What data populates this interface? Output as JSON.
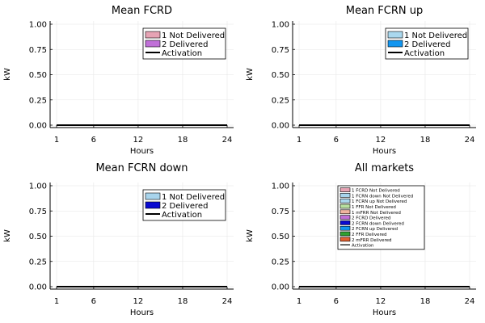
{
  "chart_data": [
    {
      "type": "area",
      "title": "Mean FCRD",
      "xlabel": "Hours",
      "ylabel": "kW",
      "xticks": [
        "1",
        "6",
        "12",
        "18",
        "24"
      ],
      "yticks": [
        "0.00",
        "0.25",
        "0.50",
        "0.75",
        "1.00"
      ],
      "xlim": [
        1,
        24
      ],
      "ylim": [
        0,
        1
      ],
      "grid": true,
      "legend_position": "top-right",
      "series": [
        {
          "name": "1 Not Delivered",
          "kind": "area",
          "color": "#e6a3b4",
          "x": [
            1,
            24
          ],
          "values": [
            0,
            0
          ]
        },
        {
          "name": "2 Delivered",
          "kind": "area",
          "color": "#c070d8",
          "x": [
            1,
            24
          ],
          "values": [
            0,
            0
          ]
        },
        {
          "name": "Activation",
          "kind": "line",
          "color": "#000000",
          "x": [
            1,
            24
          ],
          "values": [
            0,
            0
          ]
        }
      ]
    },
    {
      "type": "area",
      "title": "Mean FCRN up",
      "xlabel": "Hours",
      "ylabel": "kW",
      "xticks": [
        "1",
        "6",
        "12",
        "18",
        "24"
      ],
      "yticks": [
        "0.00",
        "0.25",
        "0.50",
        "0.75",
        "1.00"
      ],
      "xlim": [
        1,
        24
      ],
      "ylim": [
        0,
        1
      ],
      "grid": true,
      "legend_position": "top-right",
      "series": [
        {
          "name": "1 Not Delivered",
          "kind": "area",
          "color": "#aad8ee",
          "x": [
            1,
            24
          ],
          "values": [
            0,
            0
          ]
        },
        {
          "name": "2 Delivered",
          "kind": "area",
          "color": "#1296f0",
          "x": [
            1,
            24
          ],
          "values": [
            0,
            0
          ]
        },
        {
          "name": "Activation",
          "kind": "line",
          "color": "#000000",
          "x": [
            1,
            24
          ],
          "values": [
            0,
            0
          ]
        }
      ]
    },
    {
      "type": "area",
      "title": "Mean FCRN down",
      "xlabel": "Hours",
      "ylabel": "kW",
      "xticks": [
        "1",
        "6",
        "12",
        "18",
        "24"
      ],
      "yticks": [
        "0.00",
        "0.25",
        "0.50",
        "0.75",
        "1.00"
      ],
      "xlim": [
        1,
        24
      ],
      "ylim": [
        0,
        1
      ],
      "grid": true,
      "legend_position": "top-right",
      "series": [
        {
          "name": "1 Not Delivered",
          "kind": "area",
          "color": "#a8d4ec",
          "x": [
            1,
            24
          ],
          "values": [
            0,
            0
          ]
        },
        {
          "name": "2 Delivered",
          "kind": "area",
          "color": "#0a0ad0",
          "x": [
            1,
            24
          ],
          "values": [
            0,
            0
          ]
        },
        {
          "name": "Activation",
          "kind": "line",
          "color": "#000000",
          "x": [
            1,
            24
          ],
          "values": [
            0,
            0
          ]
        }
      ]
    },
    {
      "type": "area",
      "title": "All markets",
      "xlabel": "Hours",
      "ylabel": "kW",
      "xticks": [
        "1",
        "6",
        "12",
        "18",
        "24"
      ],
      "yticks": [
        "0.00",
        "0.25",
        "0.50",
        "0.75",
        "1.00"
      ],
      "xlim": [
        1,
        24
      ],
      "ylim": [
        0,
        1
      ],
      "grid": true,
      "legend_position": "top-center",
      "legend_size": "small",
      "series": [
        {
          "name": "1 FCRD Not Delivered",
          "kind": "area",
          "color": "#e6a3b4",
          "x": [
            1,
            24
          ],
          "values": [
            0,
            0
          ]
        },
        {
          "name": "1 FCRN down Not Delivered",
          "kind": "area",
          "color": "#a8d4ec",
          "x": [
            1,
            24
          ],
          "values": [
            0,
            0
          ]
        },
        {
          "name": "1 FCRN up Not Delivered",
          "kind": "area",
          "color": "#aad8ee",
          "x": [
            1,
            24
          ],
          "values": [
            0,
            0
          ]
        },
        {
          "name": "1 FFR Not Delivered",
          "kind": "area",
          "color": "#b8e0a0",
          "x": [
            1,
            24
          ],
          "values": [
            0,
            0
          ]
        },
        {
          "name": "1 mFRR Not Delivered",
          "kind": "area",
          "color": "#f0b4a0",
          "x": [
            1,
            24
          ],
          "values": [
            0,
            0
          ]
        },
        {
          "name": "2 FCRD Delivered",
          "kind": "area",
          "color": "#c070d8",
          "x": [
            1,
            24
          ],
          "values": [
            0,
            0
          ]
        },
        {
          "name": "2 FCRN down Delivered",
          "kind": "area",
          "color": "#0a0ad0",
          "x": [
            1,
            24
          ],
          "values": [
            0,
            0
          ]
        },
        {
          "name": "2 FCRN up Delivered",
          "kind": "area",
          "color": "#1296f0",
          "x": [
            1,
            24
          ],
          "values": [
            0,
            0
          ]
        },
        {
          "name": "2 FFR Delivered",
          "kind": "area",
          "color": "#30a030",
          "x": [
            1,
            24
          ],
          "values": [
            0,
            0
          ]
        },
        {
          "name": "2 mFRR Delivered",
          "kind": "area",
          "color": "#e06030",
          "x": [
            1,
            24
          ],
          "values": [
            0,
            0
          ]
        },
        {
          "name": "Activation",
          "kind": "line",
          "color": "#000000",
          "x": [
            1,
            24
          ],
          "values": [
            0,
            0
          ]
        }
      ]
    }
  ]
}
